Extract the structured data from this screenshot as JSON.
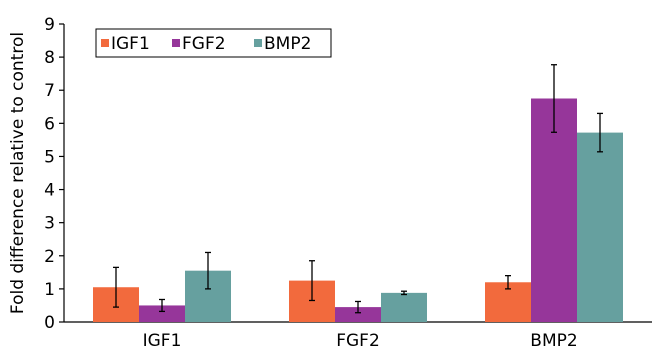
{
  "chart_data": {
    "type": "bar",
    "categories": [
      "IGF1",
      "FGF2",
      "BMP2"
    ],
    "series": [
      {
        "name": "IGF1",
        "color": "#F26A3D",
        "values": [
          1.05,
          1.25,
          1.2
        ],
        "errors": [
          0.6,
          0.6,
          0.2
        ]
      },
      {
        "name": "FGF2",
        "color": "#96369A",
        "values": [
          0.5,
          0.45,
          6.75
        ],
        "errors": [
          0.18,
          0.17,
          1.02
        ]
      },
      {
        "name": "BMP2",
        "color": "#66A09F",
        "values": [
          1.55,
          0.88,
          5.72
        ],
        "errors": [
          0.55,
          0.05,
          0.58
        ]
      }
    ],
    "ylabel": "Fold difference relative to control",
    "ylim": [
      0,
      9
    ],
    "yticks": [
      "0",
      "1",
      "2",
      "3",
      "4",
      "5",
      "6",
      "7",
      "8",
      "9"
    ],
    "grid": false,
    "legend": "top-left"
  }
}
